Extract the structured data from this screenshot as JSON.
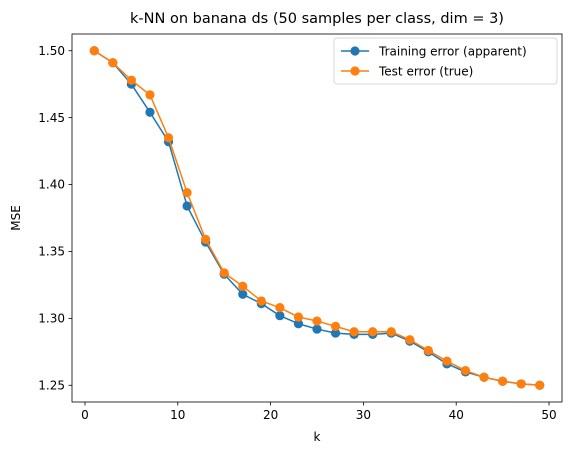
{
  "chart_data": {
    "type": "line",
    "title": "k-NN on banana ds (50 samples per class, dim = 3)",
    "xlabel": "k",
    "ylabel": "MSE",
    "xlim": [
      -1.4,
      51.4
    ],
    "ylim": [
      1.2375,
      1.5125
    ],
    "xticks": [
      0,
      10,
      20,
      30,
      40,
      50
    ],
    "yticks": [
      1.25,
      1.3,
      1.35,
      1.4,
      1.45,
      1.5
    ],
    "xtick_labels": [
      "0",
      "10",
      "20",
      "30",
      "40",
      "50"
    ],
    "ytick_labels": [
      "1.25",
      "1.30",
      "1.35",
      "1.40",
      "1.45",
      "1.50"
    ],
    "grid": false,
    "legend_position": "top-right",
    "x": [
      1,
      3,
      5,
      7,
      9,
      11,
      13,
      15,
      17,
      19,
      21,
      23,
      25,
      27,
      29,
      31,
      33,
      35,
      37,
      39,
      41,
      43,
      45,
      47,
      49
    ],
    "series": [
      {
        "name": "Training error (apparent)",
        "color": "#1f77b4",
        "values": [
          1.5,
          1.491,
          1.475,
          1.454,
          1.432,
          1.384,
          1.357,
          1.333,
          1.318,
          1.311,
          1.302,
          1.296,
          1.292,
          1.289,
          1.288,
          1.288,
          1.289,
          1.283,
          1.275,
          1.266,
          1.26,
          1.256,
          1.253,
          1.251,
          1.25
        ]
      },
      {
        "name": "Test error (true)",
        "color": "#ff7f0e",
        "values": [
          1.5,
          1.491,
          1.478,
          1.467,
          1.435,
          1.394,
          1.359,
          1.334,
          1.324,
          1.313,
          1.308,
          1.301,
          1.298,
          1.294,
          1.29,
          1.29,
          1.29,
          1.284,
          1.276,
          1.268,
          1.261,
          1.256,
          1.253,
          1.251,
          1.25
        ]
      }
    ]
  }
}
